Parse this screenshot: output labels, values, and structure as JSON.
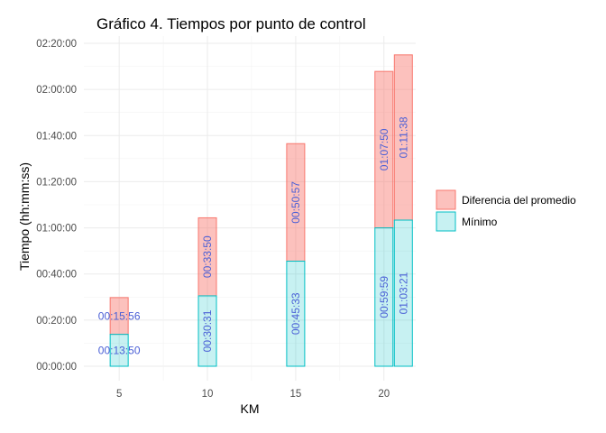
{
  "chart_data": {
    "type": "bar",
    "stacked": true,
    "title": "Gráfico 4. Tiempos por punto de control",
    "xlabel": "KM",
    "ylabel": "Tiempo (hh:mm:ss)",
    "x_ticks": [
      5,
      10,
      15,
      20
    ],
    "y_ticks": [
      "00:00:00",
      "00:20:00",
      "00:40:00",
      "01:00:00",
      "01:20:00",
      "01:40:00",
      "02:00:00",
      "02:20:00"
    ],
    "ylim_seconds": [
      0,
      8400
    ],
    "xlim": [
      3.0,
      21.8
    ],
    "grid": true,
    "legend_position": "right",
    "colors": {
      "diferencia_fill": "#f8766d",
      "minimo_fill": "#00bfc4"
    },
    "series": [
      {
        "name": "Diferencia del promedio",
        "key": "diferencia"
      },
      {
        "name": "Mínimo",
        "key": "minimo"
      }
    ],
    "bars": [
      {
        "x": 5,
        "minimo": 830,
        "diferencia": 956,
        "minimo_label": "00:13:50",
        "diferencia_label": "00:15:56",
        "label_orientation": "horizontal"
      },
      {
        "x": 10,
        "minimo": 1831,
        "diferencia": 2030,
        "minimo_label": "00:30:31",
        "diferencia_label": "00:33:50",
        "label_orientation": "vertical"
      },
      {
        "x": 15,
        "minimo": 2733,
        "diferencia": 3057,
        "minimo_label": "00:45:33",
        "diferencia_label": "00:50:57",
        "label_orientation": "vertical"
      },
      {
        "x": 20,
        "minimo": 3599,
        "diferencia": 4070,
        "minimo_label": "00:59:59",
        "diferencia_label": "01:07:50",
        "label_orientation": "vertical"
      },
      {
        "x": 21.1,
        "minimo": 3801,
        "diferencia": 4298,
        "minimo_label": "01:03:21",
        "diferencia_label": "01:11:38",
        "label_orientation": "vertical"
      }
    ]
  }
}
